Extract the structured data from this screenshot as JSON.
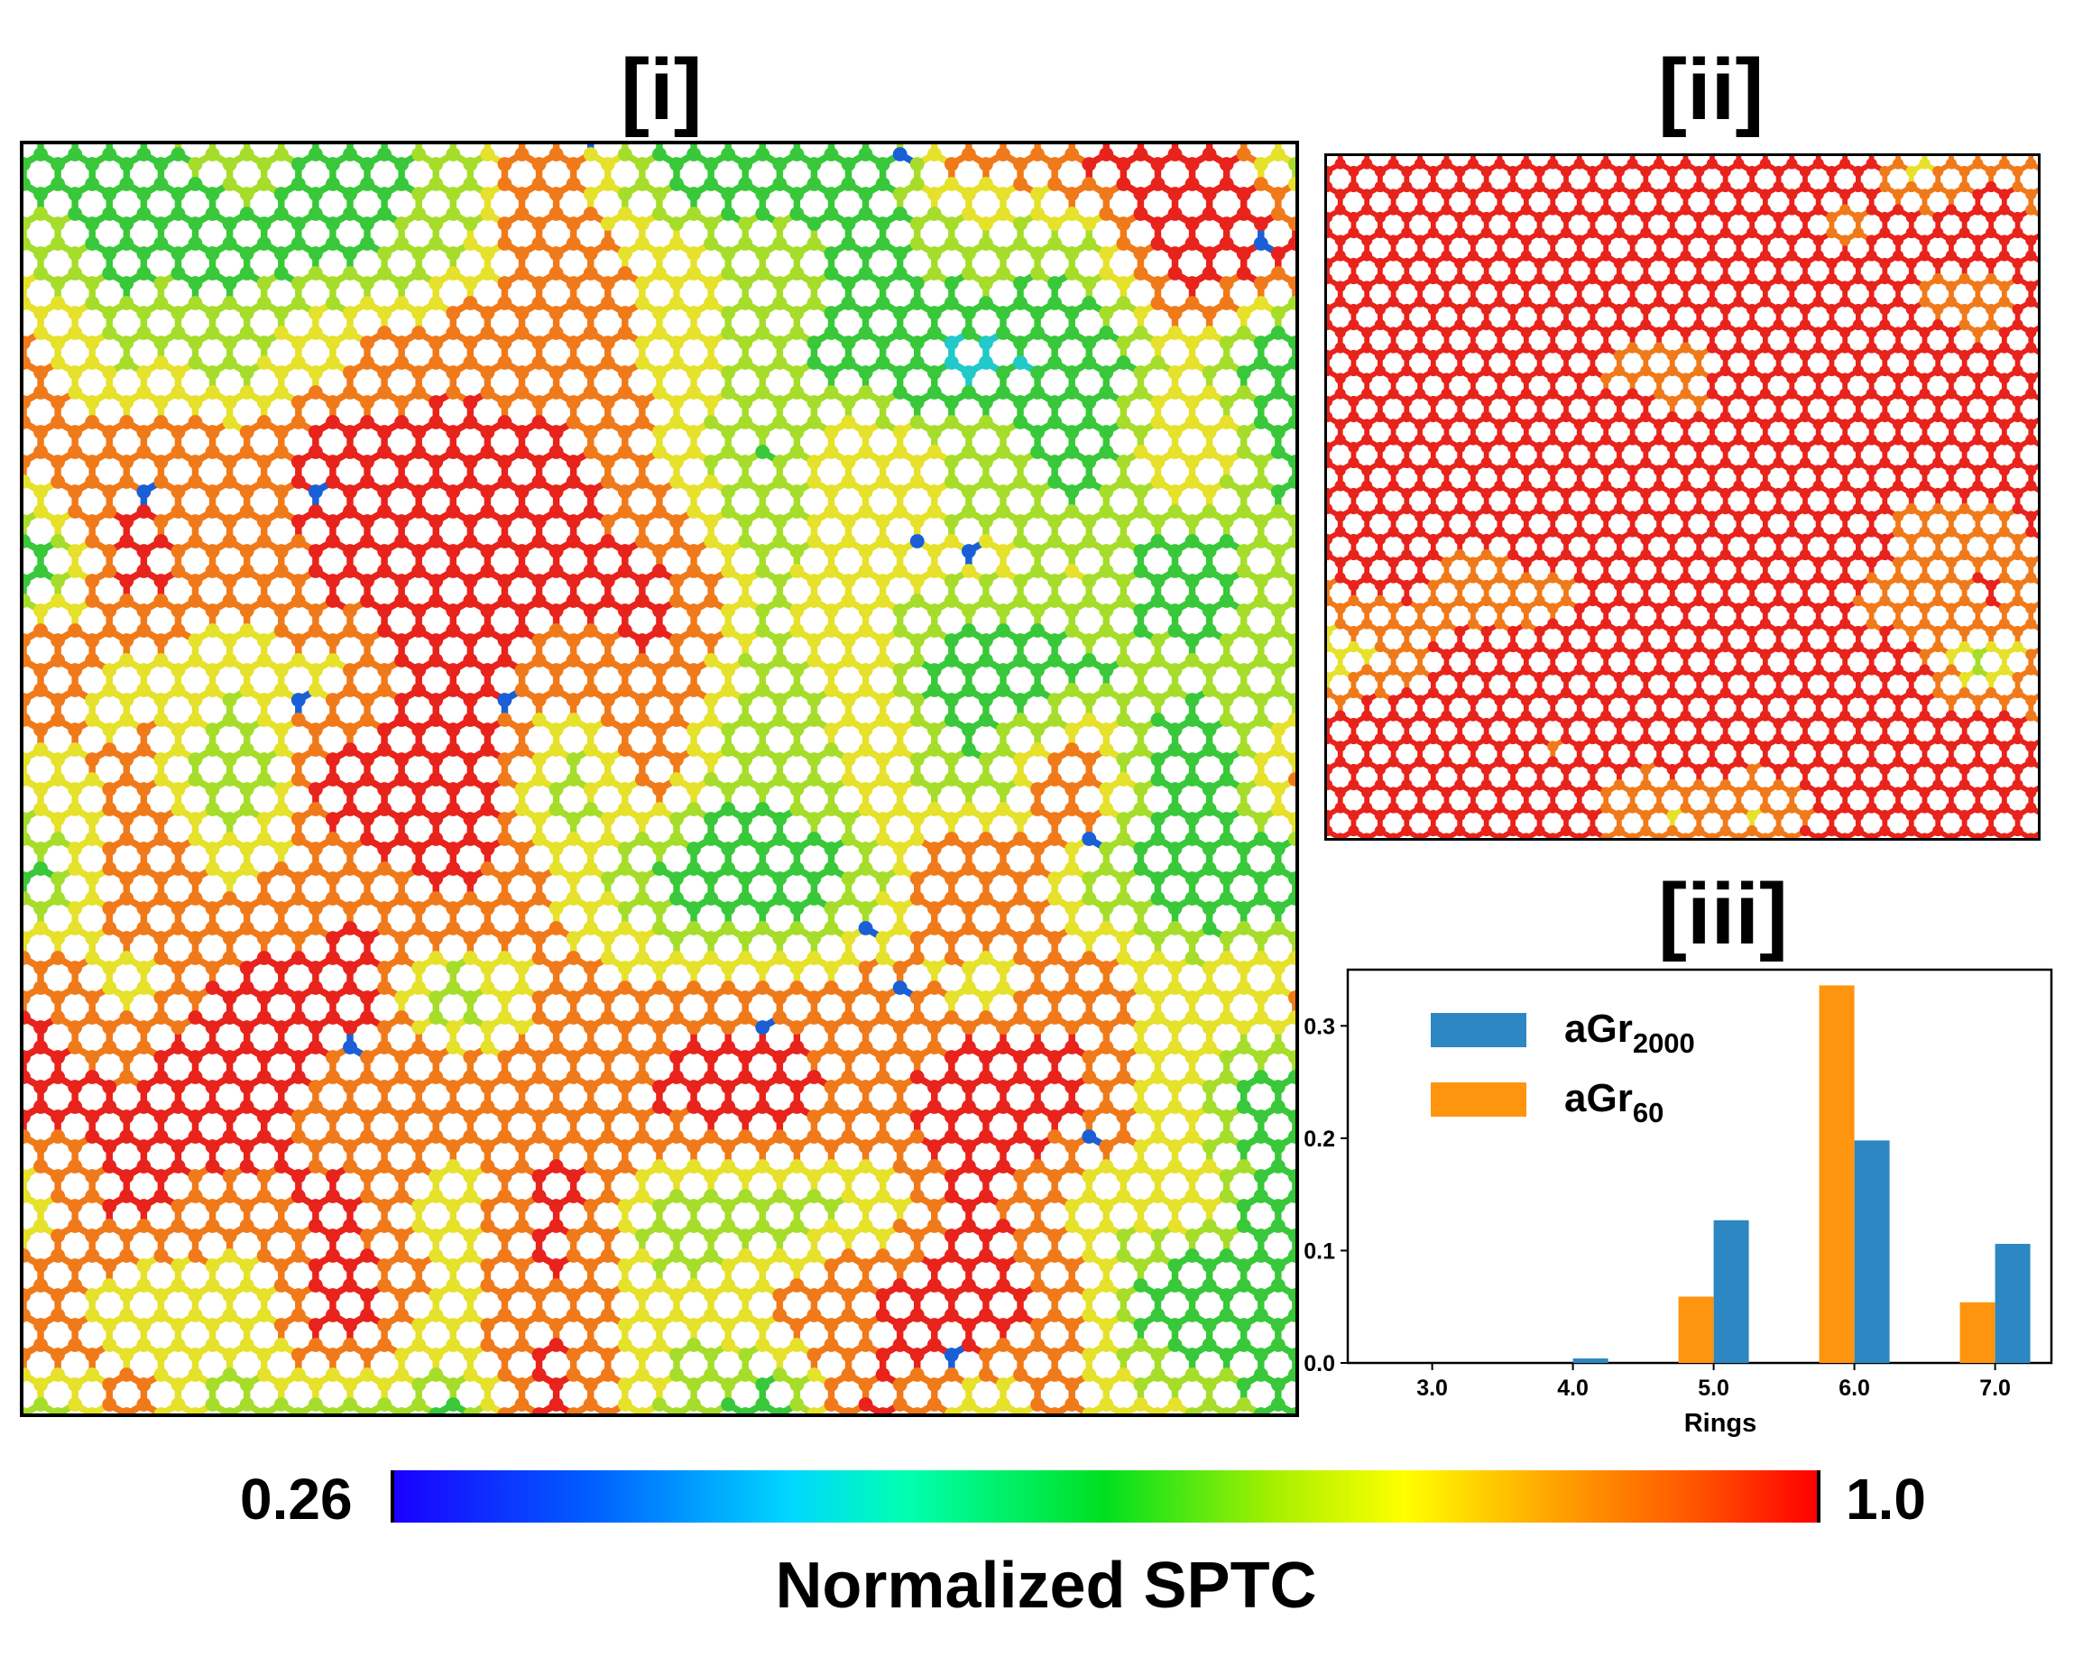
{
  "panels": {
    "i_label": "[i]",
    "ii_label": "[ii]",
    "iii_label": "[iii]"
  },
  "colorbar": {
    "min_label": "0.26",
    "max_label": "1.0",
    "title": "Normalized SPTC",
    "stops": [
      "#1a00ff",
      "#0060ff",
      "#00d8ff",
      "#00ffb0",
      "#00e020",
      "#a8f000",
      "#ffff00",
      "#ffa000",
      "#ff5000",
      "#ff0000"
    ]
  },
  "lattice": {
    "colors": {
      "red": "#e8231c",
      "orange": "#f07a1a",
      "yellow": "#e6e12a",
      "lime": "#a6dd2a",
      "green": "#39c83a",
      "cyan": "#22c9c9",
      "blue": "#1b5fd6"
    }
  },
  "chart_data": {
    "type": "bar",
    "categories": [
      "3.0",
      "4.0",
      "5.0",
      "6.0",
      "7.0"
    ],
    "series": [
      {
        "name_main": "aGr",
        "name_sub": "2000",
        "color": "#2c87c2",
        "values": [
          0.0,
          0.004,
          0.127,
          0.198,
          0.106
        ]
      },
      {
        "name_main": "aGr",
        "name_sub": "60",
        "color": "#ff940e",
        "values": [
          0.0,
          0.0,
          0.059,
          0.336,
          0.054
        ]
      }
    ],
    "xlabel": "Rings",
    "ylabel": "",
    "ylim": [
      0,
      0.35
    ],
    "yticks": [
      "0.0",
      "0.1",
      "0.2",
      "0.3"
    ],
    "legend_position": "upper-left"
  }
}
